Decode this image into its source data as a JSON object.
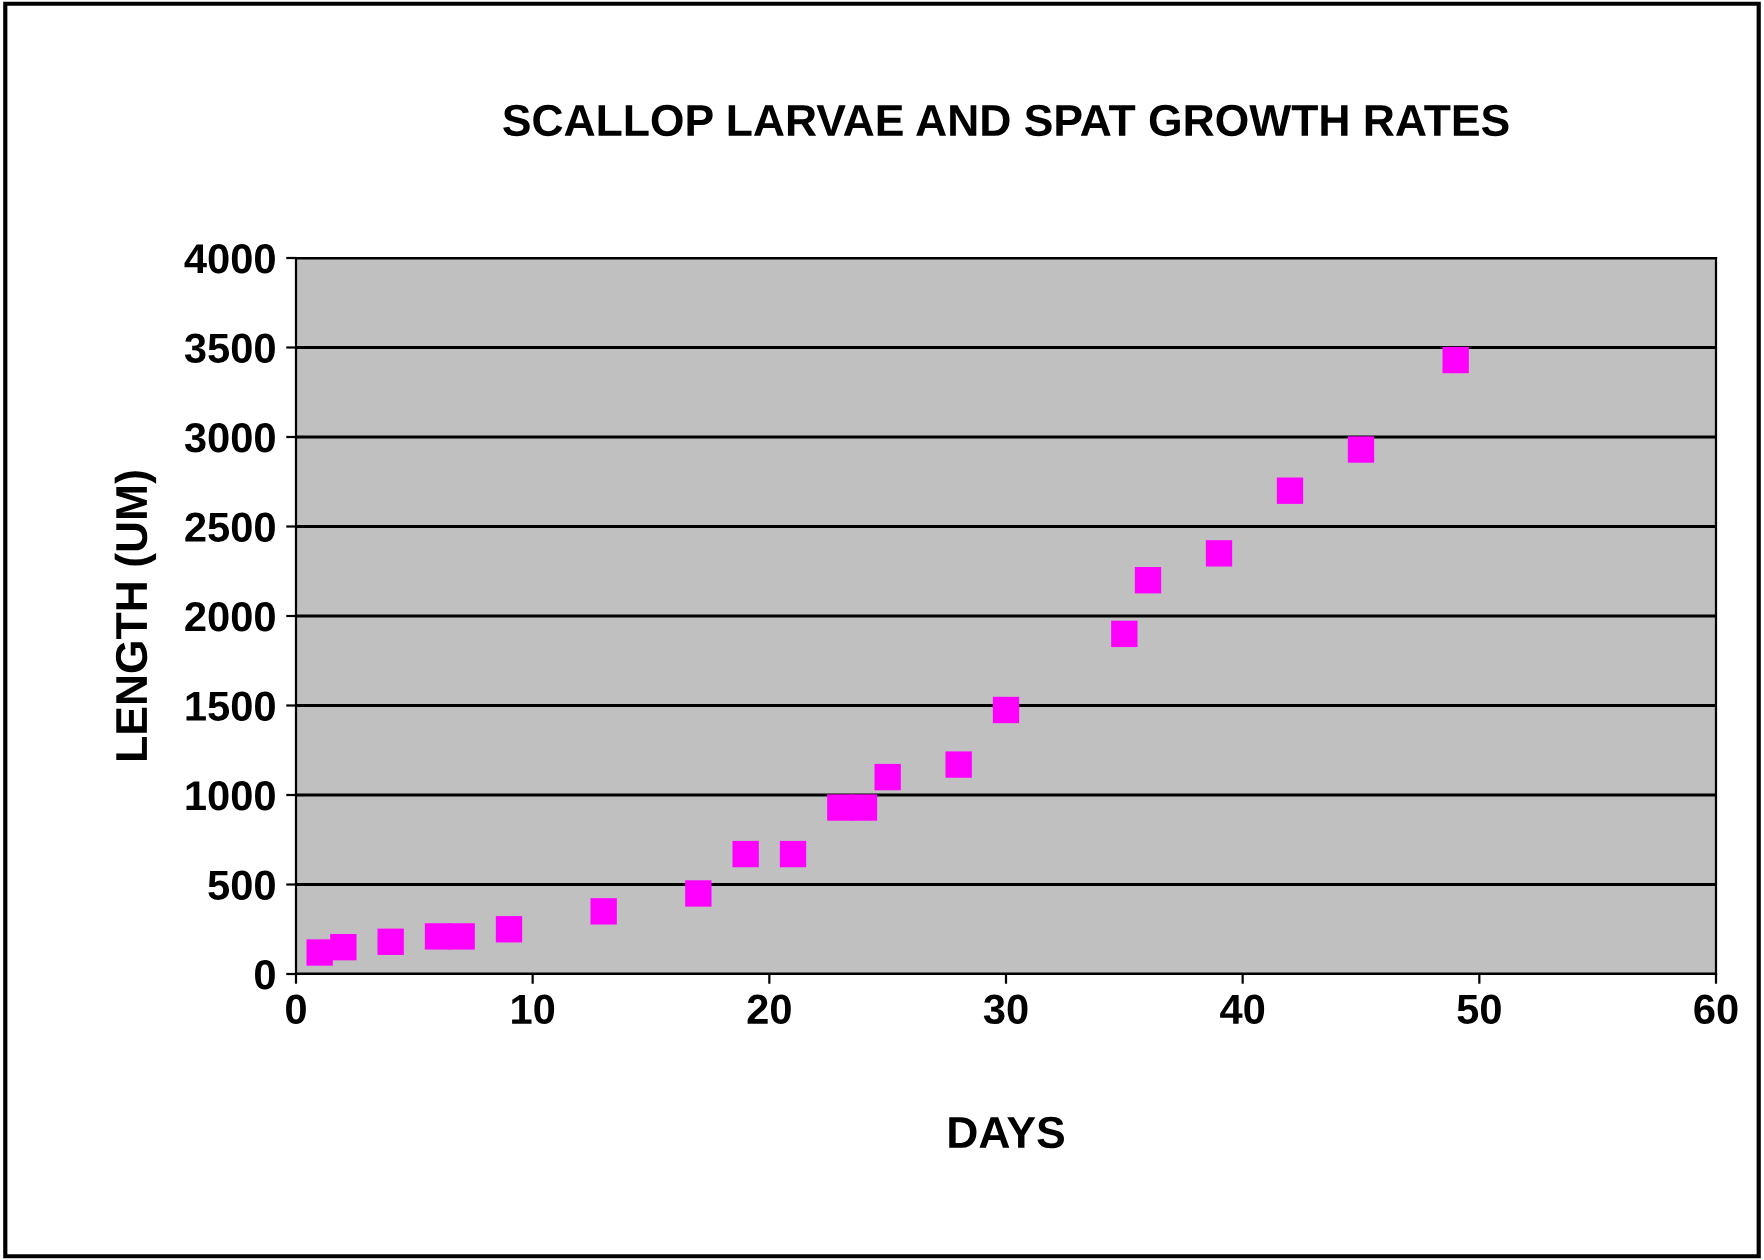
{
  "chart_data": {
    "type": "scatter",
    "title": "SCALLOP LARVAE AND SPAT GROWTH RATES",
    "xlabel": "DAYS",
    "ylabel": "LENGTH (UM)",
    "x": [
      1,
      2,
      4,
      6,
      7,
      9,
      13,
      17,
      19,
      21,
      23,
      24,
      25,
      28,
      30,
      35,
      36,
      39,
      42,
      45,
      49
    ],
    "series": [
      {
        "color": "#ff00ff",
        "values": [
          120,
          150,
          180,
          210,
          210,
          250,
          350,
          450,
          670,
          670,
          930,
          930,
          1100,
          1170,
          1475,
          1900,
          2200,
          2350,
          2700,
          2930,
          3430
        ]
      }
    ],
    "marker": "square",
    "grid": "y",
    "legend": false,
    "xlim": [
      0,
      60
    ],
    "xticks": [
      0,
      10,
      20,
      30,
      40,
      50,
      60
    ],
    "ylim": [
      0,
      4000
    ],
    "yticks": [
      0,
      500,
      1000,
      1500,
      2000,
      2500,
      3000,
      3500,
      4000
    ]
  }
}
